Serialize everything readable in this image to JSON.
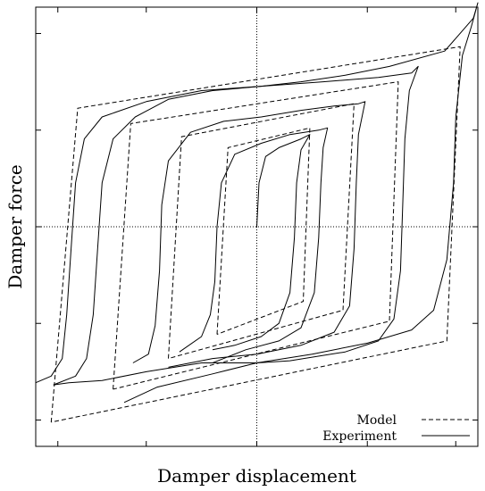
{
  "chart_data": {
    "type": "line",
    "title": "",
    "xlabel": "Damper displacement",
    "ylabel": "Damper force",
    "xlim": [
      -1,
      1
    ],
    "ylim": [
      -1,
      1
    ],
    "x_ticks": [
      -0.9,
      -0.5,
      0,
      0.5,
      0.9
    ],
    "y_ticks": [
      -1,
      -0.5,
      0,
      0.5,
      1
    ],
    "tick_labels_shown": false,
    "reference_lines": [
      "x=0 dotted",
      "y=0 dotted"
    ],
    "legend": {
      "position": "bottom-right"
    },
    "series": [
      {
        "name": "Model",
        "style": "dashed",
        "color": "#000000",
        "loops": [
          [
            [
              -0.93,
              -0.89
            ],
            [
              -0.81,
              0.54
            ],
            [
              0.92,
              0.82
            ],
            [
              0.86,
              -0.52
            ],
            [
              -0.93,
              -0.89
            ]
          ],
          [
            [
              -0.65,
              -0.74
            ],
            [
              -0.57,
              0.47
            ],
            [
              0.64,
              0.66
            ],
            [
              0.6,
              -0.43
            ],
            [
              -0.65,
              -0.74
            ]
          ],
          [
            [
              -0.4,
              -0.6
            ],
            [
              -0.34,
              0.41
            ],
            [
              0.44,
              0.56
            ],
            [
              0.39,
              -0.38
            ],
            [
              -0.4,
              -0.6
            ]
          ],
          [
            [
              -0.18,
              -0.49
            ],
            [
              -0.13,
              0.36
            ],
            [
              0.24,
              0.45
            ],
            [
              0.21,
              -0.34
            ],
            [
              -0.18,
              -0.49
            ]
          ]
        ]
      },
      {
        "name": "Experiment",
        "style": "solid",
        "color": "#000000",
        "loops": [
          [
            [
              -0.6,
              -0.8
            ],
            [
              -0.45,
              -0.73
            ],
            [
              -0.2,
              -0.67
            ],
            [
              0.0,
              -0.62
            ],
            [
              0.25,
              -0.58
            ],
            [
              0.5,
              -0.53
            ],
            [
              0.7,
              -0.47
            ],
            [
              0.8,
              -0.38
            ],
            [
              0.86,
              -0.15
            ],
            [
              0.89,
              0.2
            ],
            [
              0.9,
              0.5
            ],
            [
              0.93,
              0.78
            ],
            [
              0.97,
              0.91
            ],
            [
              1.0,
              1.02
            ],
            [
              0.98,
              0.95
            ],
            [
              0.85,
              0.8
            ],
            [
              0.6,
              0.73
            ],
            [
              0.4,
              0.69
            ],
            [
              0.2,
              0.66
            ],
            [
              0.02,
              0.64
            ],
            [
              -0.2,
              0.62
            ],
            [
              -0.4,
              0.58
            ],
            [
              -0.55,
              0.5
            ],
            [
              -0.65,
              0.4
            ],
            [
              -0.7,
              0.2
            ],
            [
              -0.72,
              -0.1
            ],
            [
              -0.74,
              -0.4
            ],
            [
              -0.77,
              -0.6
            ],
            [
              -0.82,
              -0.68
            ],
            [
              -0.92,
              -0.72
            ]
          ],
          [
            [
              -0.92,
              -0.72
            ],
            [
              -0.85,
              -0.71
            ],
            [
              -0.7,
              -0.7
            ],
            [
              -0.5,
              -0.66
            ],
            [
              -0.25,
              -0.62
            ],
            [
              0.0,
              -0.62
            ],
            [
              0.15,
              -0.61
            ],
            [
              0.4,
              -0.57
            ],
            [
              0.55,
              -0.52
            ],
            [
              0.62,
              -0.42
            ],
            [
              0.65,
              -0.2
            ],
            [
              0.66,
              0.1
            ],
            [
              0.67,
              0.4
            ],
            [
              0.69,
              0.62
            ],
            [
              0.73,
              0.73
            ],
            [
              0.7,
              0.7
            ],
            [
              0.55,
              0.68
            ],
            [
              0.3,
              0.66
            ],
            [
              0.02,
              0.64
            ],
            [
              -0.25,
              0.62
            ],
            [
              -0.5,
              0.57
            ],
            [
              -0.7,
              0.5
            ],
            [
              -0.78,
              0.4
            ],
            [
              -0.82,
              0.2
            ],
            [
              -0.84,
              -0.1
            ],
            [
              -0.86,
              -0.4
            ],
            [
              -0.88,
              -0.6
            ],
            [
              -0.93,
              -0.68
            ],
            [
              -1.0,
              -0.71
            ]
          ],
          [
            [
              -0.4,
              -0.64
            ],
            [
              -0.2,
              -0.6
            ],
            [
              0.0,
              -0.58
            ],
            [
              0.2,
              -0.54
            ],
            [
              0.35,
              -0.48
            ],
            [
              0.42,
              -0.36
            ],
            [
              0.44,
              -0.1
            ],
            [
              0.45,
              0.2
            ],
            [
              0.46,
              0.42
            ],
            [
              0.49,
              0.57
            ],
            [
              0.46,
              0.56
            ],
            [
              0.35,
              0.55
            ],
            [
              0.2,
              0.53
            ],
            [
              0.02,
              0.5
            ],
            [
              -0.15,
              0.48
            ],
            [
              -0.3,
              0.43
            ],
            [
              -0.4,
              0.3
            ],
            [
              -0.43,
              0.1
            ],
            [
              -0.44,
              -0.2
            ],
            [
              -0.46,
              -0.45
            ],
            [
              -0.49,
              -0.58
            ],
            [
              -0.56,
              -0.62
            ]
          ],
          [
            [
              -0.2,
              -0.62
            ],
            [
              -0.05,
              -0.56
            ],
            [
              0.1,
              -0.52
            ],
            [
              0.2,
              -0.46
            ],
            [
              0.26,
              -0.3
            ],
            [
              0.28,
              -0.05
            ],
            [
              0.29,
              0.2
            ],
            [
              0.3,
              0.36
            ],
            [
              0.32,
              0.45
            ],
            [
              0.28,
              0.44
            ],
            [
              0.15,
              0.42
            ],
            [
              0.02,
              0.38
            ],
            [
              -0.1,
              0.33
            ],
            [
              -0.16,
              0.2
            ],
            [
              -0.18,
              0.0
            ],
            [
              -0.19,
              -0.25
            ],
            [
              -0.21,
              -0.4
            ],
            [
              -0.25,
              -0.5
            ],
            [
              -0.35,
              -0.57
            ]
          ],
          [
            [
              -0.2,
              -0.56
            ],
            [
              -0.1,
              -0.54
            ],
            [
              0.02,
              -0.5
            ],
            [
              0.1,
              -0.44
            ],
            [
              0.15,
              -0.3
            ],
            [
              0.17,
              -0.05
            ],
            [
              0.18,
              0.2
            ],
            [
              0.2,
              0.35
            ],
            [
              0.24,
              0.42
            ],
            [
              0.2,
              0.4
            ],
            [
              0.1,
              0.36
            ],
            [
              0.04,
              0.32
            ],
            [
              0.01,
              0.2
            ],
            [
              0.0,
              0.0
            ]
          ]
        ]
      }
    ]
  }
}
